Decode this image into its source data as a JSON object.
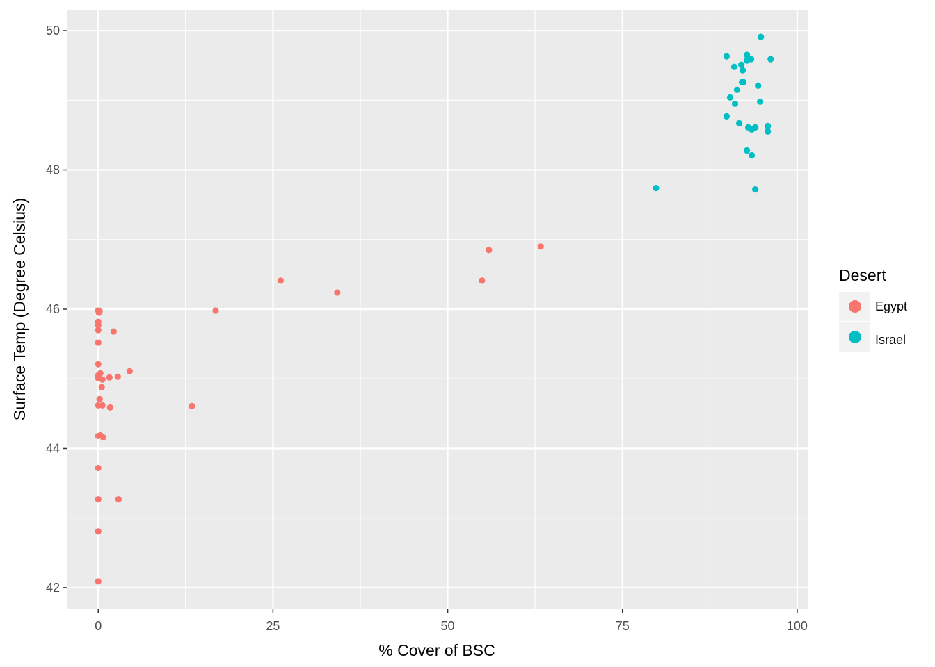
{
  "chart_data": {
    "type": "scatter",
    "xlabel": "% Cover of BSC",
    "ylabel": "Surface Temp (Degree Celsius)",
    "xlim": [
      -4.5,
      101.5
    ],
    "ylim": [
      41.7,
      50.3
    ],
    "x_ticks": [
      0,
      25,
      50,
      75,
      100
    ],
    "y_ticks": [
      42,
      44,
      46,
      48,
      50
    ],
    "x_tick_labels": [
      "0",
      "25",
      "50",
      "75",
      "100"
    ],
    "y_tick_labels": [
      "42",
      "44",
      "46",
      "48",
      "50"
    ],
    "grid": true,
    "panel_background": "#ebebeb",
    "grid_color": "#ffffff",
    "legend": {
      "title": "Desert",
      "position": "right",
      "entries": [
        {
          "label": "Egypt",
          "color": "#f8766d"
        },
        {
          "label": "Israel",
          "color": "#00bfc4"
        }
      ]
    },
    "series": [
      {
        "name": "Egypt",
        "color": "#f8766d",
        "points": [
          [
            0.0,
            45.98
          ],
          [
            0.2,
            45.97
          ],
          [
            0.1,
            45.95
          ],
          [
            0.0,
            45.82
          ],
          [
            0.0,
            45.77
          ],
          [
            0.0,
            45.7
          ],
          [
            2.2,
            45.68
          ],
          [
            0.0,
            45.52
          ],
          [
            0.0,
            45.21
          ],
          [
            4.5,
            45.11
          ],
          [
            0.3,
            45.08
          ],
          [
            0.0,
            45.05
          ],
          [
            1.6,
            45.02
          ],
          [
            2.8,
            45.03
          ],
          [
            0.6,
            44.99
          ],
          [
            0.0,
            45.01
          ],
          [
            0.5,
            44.88
          ],
          [
            0.2,
            44.71
          ],
          [
            0.0,
            44.62
          ],
          [
            0.6,
            44.62
          ],
          [
            1.7,
            44.59
          ],
          [
            13.4,
            44.61
          ],
          [
            0.0,
            44.18
          ],
          [
            0.3,
            44.19
          ],
          [
            0.7,
            44.16
          ],
          [
            0.0,
            43.72
          ],
          [
            0.0,
            43.27
          ],
          [
            2.9,
            43.27
          ],
          [
            0.0,
            42.81
          ],
          [
            0.0,
            42.09
          ],
          [
            16.8,
            45.98
          ],
          [
            26.1,
            46.41
          ],
          [
            34.2,
            46.24
          ],
          [
            54.9,
            46.41
          ],
          [
            55.9,
            46.85
          ],
          [
            63.3,
            46.9
          ]
        ]
      },
      {
        "name": "Israel",
        "color": "#00bfc4",
        "points": [
          [
            94.8,
            49.91
          ],
          [
            89.9,
            49.63
          ],
          [
            92.8,
            49.65
          ],
          [
            96.2,
            49.59
          ],
          [
            92.8,
            49.57
          ],
          [
            93.4,
            49.59
          ],
          [
            91.0,
            49.48
          ],
          [
            92.0,
            49.51
          ],
          [
            92.2,
            49.43
          ],
          [
            92.3,
            49.26
          ],
          [
            92.1,
            49.26
          ],
          [
            94.4,
            49.21
          ],
          [
            91.4,
            49.15
          ],
          [
            90.4,
            49.04
          ],
          [
            94.7,
            48.98
          ],
          [
            91.1,
            48.95
          ],
          [
            89.9,
            48.77
          ],
          [
            91.7,
            48.67
          ],
          [
            93.0,
            48.61
          ],
          [
            94.0,
            48.61
          ],
          [
            93.5,
            48.58
          ],
          [
            95.8,
            48.63
          ],
          [
            95.8,
            48.55
          ],
          [
            92.8,
            48.28
          ],
          [
            93.5,
            48.21
          ],
          [
            79.8,
            47.74
          ],
          [
            94.0,
            47.72
          ]
        ]
      }
    ]
  }
}
